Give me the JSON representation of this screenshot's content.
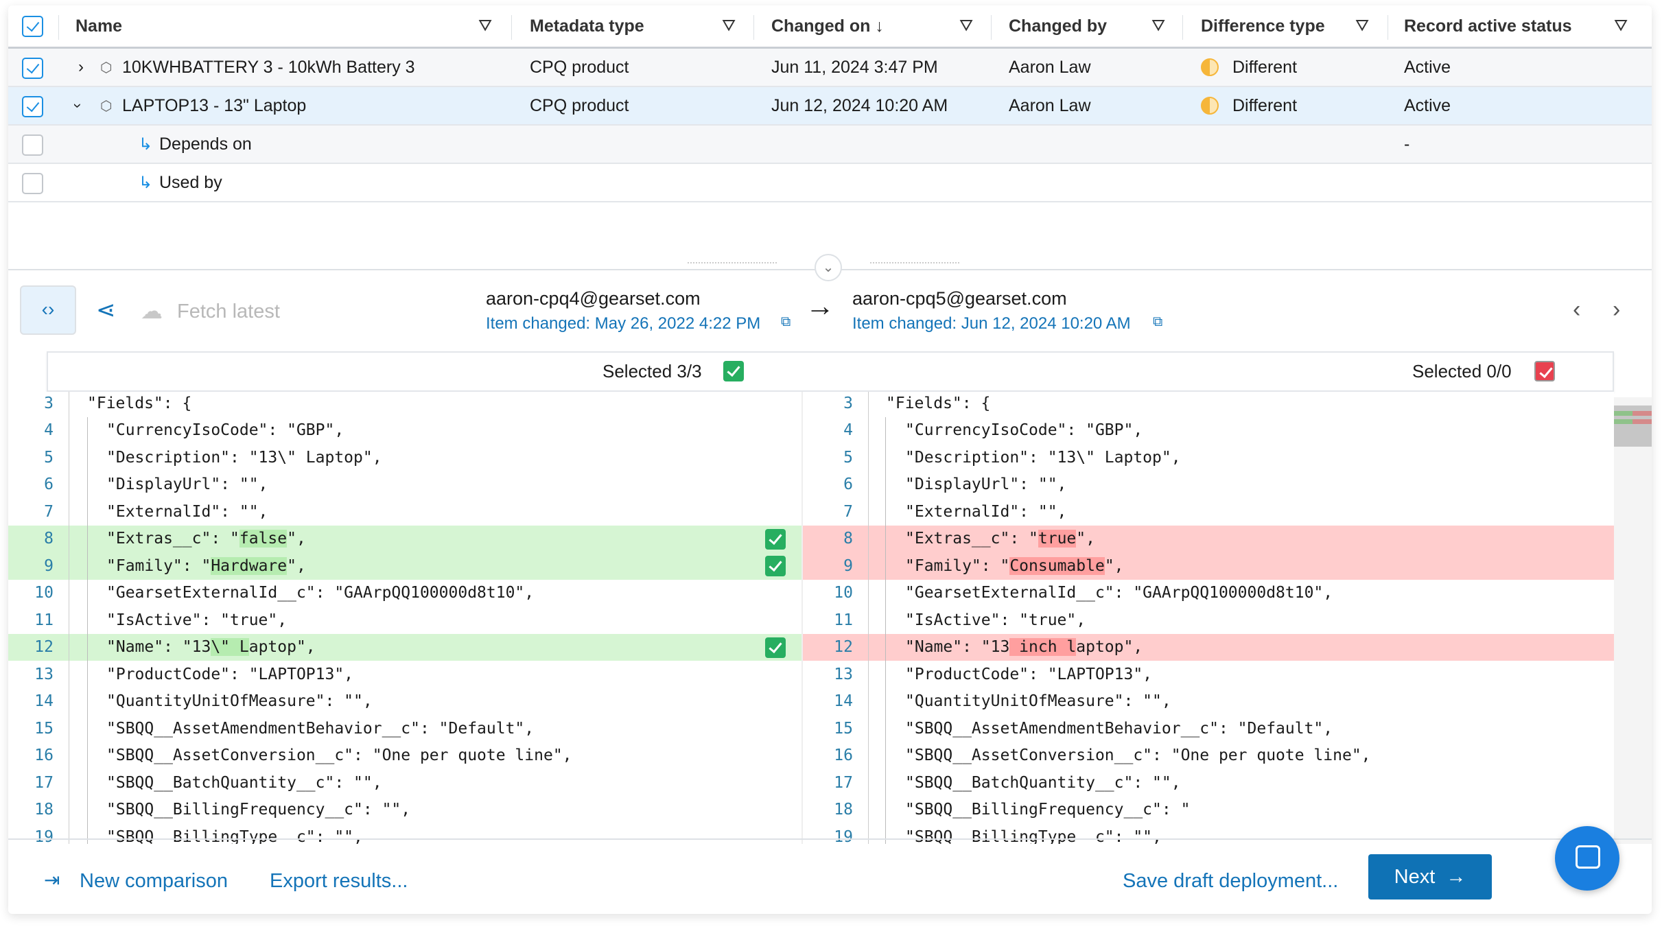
{
  "table": {
    "columns": [
      "Name",
      "Metadata type",
      "Changed on ↓",
      "Changed by",
      "Difference type",
      "Record active status"
    ],
    "rows": [
      {
        "name": "10KWHBATTERY 3 - 10kWh Battery 3",
        "type": "CPQ product",
        "changed_on": "Jun 11, 2024 3:47 PM",
        "changed_by": "Aaron Law",
        "diff": "Different",
        "status": "Active",
        "checked": true,
        "expanded": false
      },
      {
        "name": "LAPTOP13 - 13\" Laptop",
        "type": "CPQ product",
        "changed_on": "Jun 12, 2024 10:20 AM",
        "changed_by": "Aaron Law",
        "diff": "Different",
        "status": "Active",
        "checked": true,
        "expanded": true,
        "selected": true
      }
    ],
    "children": [
      {
        "label": "Depends on",
        "status": "-"
      },
      {
        "label": "Used by",
        "status": ""
      }
    ]
  },
  "toolbar": {
    "fetch_label": "Fetch latest",
    "source_org": "aaron-cpq4@gearset.com",
    "source_changed": "Item changed: May 26, 2022 4:22 PM",
    "target_org": "aaron-cpq5@gearset.com",
    "target_changed": "Item changed: Jun 12, 2024 10:20 AM"
  },
  "selection": {
    "left": "Selected 3/3",
    "right": "Selected 0/0"
  },
  "colors": {
    "accent": "#1474b8",
    "added": "#d6f5d3",
    "removed": "#ffcdcd",
    "next_button": "#0f72b5"
  },
  "diff": {
    "left": [
      {
        "n": "3",
        "parts": [
          "\"Fields\": {"
        ],
        "indent": 0
      },
      {
        "n": "4",
        "parts": [
          "\"CurrencyIsoCode\": \"GBP\","
        ]
      },
      {
        "n": "5",
        "parts": [
          "\"Description\": \"13\\\" Laptop\","
        ]
      },
      {
        "n": "6",
        "parts": [
          "\"DisplayUrl\": \"\","
        ]
      },
      {
        "n": "7",
        "parts": [
          "\"ExternalId\": \"\","
        ]
      },
      {
        "n": "8",
        "parts": [
          "\"Extras__c\": \"",
          "false",
          "\","
        ],
        "changed": true,
        "checked": true
      },
      {
        "n": "9",
        "parts": [
          "\"Family\": \"",
          "Hardware",
          "\","
        ],
        "changed": true,
        "checked": true
      },
      {
        "n": "10",
        "parts": [
          "\"GearsetExternalId__c\": \"GAArpQQ100000d8t10\","
        ]
      },
      {
        "n": "11",
        "parts": [
          "\"IsActive\": \"true\","
        ]
      },
      {
        "n": "12",
        "parts": [
          "\"Name\": \"13",
          "\\\" L",
          "aptop\","
        ],
        "changed": true,
        "checked": true
      },
      {
        "n": "13",
        "parts": [
          "\"ProductCode\": \"LAPTOP13\","
        ]
      },
      {
        "n": "14",
        "parts": [
          "\"QuantityUnitOfMeasure\": \"\","
        ]
      },
      {
        "n": "15",
        "parts": [
          "\"SBQQ__AssetAmendmentBehavior__c\": \"Default\","
        ]
      },
      {
        "n": "16",
        "parts": [
          "\"SBQQ__AssetConversion__c\": \"One per quote line\","
        ]
      },
      {
        "n": "17",
        "parts": [
          "\"SBQQ__BatchQuantity__c\": \"\","
        ]
      },
      {
        "n": "18",
        "parts": [
          "\"SBQQ__BillingFrequency__c\": \"\","
        ]
      },
      {
        "n": "19",
        "parts": [
          "\"SBQQ__BillingType__c\": \"\","
        ]
      }
    ],
    "right": [
      {
        "n": "3",
        "parts": [
          "\"Fields\": {"
        ],
        "indent": 0
      },
      {
        "n": "4",
        "parts": [
          "\"CurrencyIsoCode\": \"GBP\","
        ]
      },
      {
        "n": "5",
        "parts": [
          "\"Description\": \"13\\\" Laptop\","
        ]
      },
      {
        "n": "6",
        "parts": [
          "\"DisplayUrl\": \"\","
        ]
      },
      {
        "n": "7",
        "parts": [
          "\"ExternalId\": \"\","
        ]
      },
      {
        "n": "8",
        "parts": [
          "\"Extras__c\": \"",
          "true",
          "\","
        ],
        "changed": true
      },
      {
        "n": "9",
        "parts": [
          "\"Family\": \"",
          "Consumable",
          "\","
        ],
        "changed": true
      },
      {
        "n": "10",
        "parts": [
          "\"GearsetExternalId__c\": \"GAArpQQ100000d8t10\","
        ]
      },
      {
        "n": "11",
        "parts": [
          "\"IsActive\": \"true\","
        ]
      },
      {
        "n": "12",
        "parts": [
          "\"Name\": \"13",
          " inch l",
          "aptop\","
        ],
        "changed": true
      },
      {
        "n": "13",
        "parts": [
          "\"ProductCode\": \"LAPTOP13\","
        ]
      },
      {
        "n": "14",
        "parts": [
          "\"QuantityUnitOfMeasure\": \"\","
        ]
      },
      {
        "n": "15",
        "parts": [
          "\"SBQQ__AssetAmendmentBehavior__c\": \"Default\","
        ]
      },
      {
        "n": "16",
        "parts": [
          "\"SBQQ__AssetConversion__c\": \"One per quote line\","
        ]
      },
      {
        "n": "17",
        "parts": [
          "\"SBQQ__BatchQuantity__c\": \"\","
        ]
      },
      {
        "n": "18",
        "parts": [
          "\"SBQQ__BillingFrequency__c\": \""
        ]
      },
      {
        "n": "19",
        "parts": [
          "\"SBQQ__BillingType__c\": \"\","
        ]
      }
    ]
  },
  "footer": {
    "new_comparison": "New comparison",
    "export": "Export results...",
    "save_draft": "Save draft deployment...",
    "next": "Next"
  }
}
